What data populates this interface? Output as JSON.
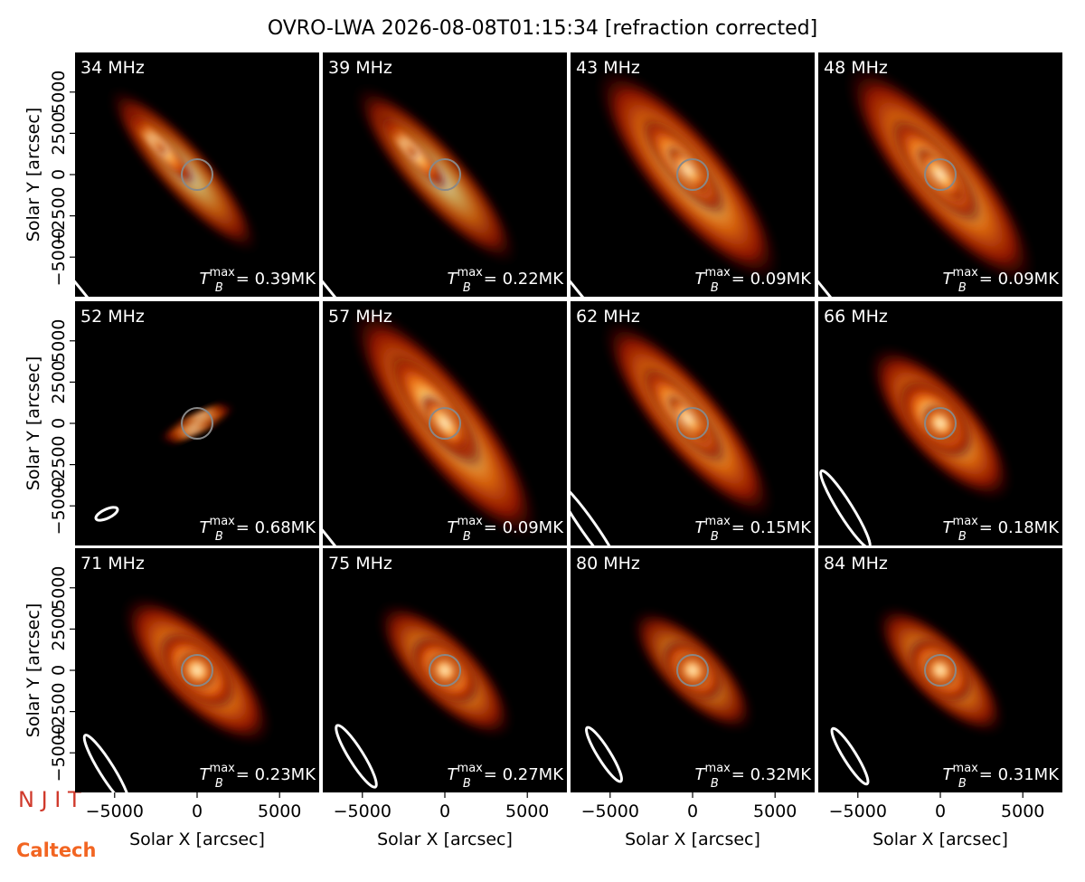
{
  "figure": {
    "title": "OVRO-LWA 2026-08-08T01:15:34 [refraction corrected]",
    "logos": [
      "N J I T",
      "Caltech"
    ],
    "tb_symbol": "T",
    "tb_sub": "B",
    "tb_sup": "max"
  },
  "chart_data": [
    {
      "type": "image",
      "title": "34 MHz",
      "annotation": "= 0.39MK",
      "xlim": [
        -7400,
        7400
      ],
      "ylim": [
        -7400,
        7400
      ],
      "ylabel": "Solar Y [arcsec]",
      "yticks": [
        {
          "value": -5000,
          "label": "−5000"
        },
        {
          "value": -2500,
          "label": "−2500"
        },
        0,
        2500,
        5000
      ]
    },
    {
      "type": "image",
      "title": "39 MHz",
      "annotation": "= 0.22MK",
      "xlim": [
        -7400,
        7400
      ],
      "ylim": [
        -7400,
        7400
      ]
    },
    {
      "type": "image",
      "title": "43 MHz",
      "annotation": "= 0.09MK",
      "xlim": [
        -7400,
        7400
      ],
      "ylim": [
        -7400,
        7400
      ]
    },
    {
      "type": "image",
      "title": "48 MHz",
      "annotation": "= 0.09MK",
      "xlim": [
        -7400,
        7400
      ],
      "ylim": [
        -7400,
        7400
      ]
    },
    {
      "type": "image",
      "title": "52 MHz",
      "annotation": "= 0.68MK",
      "xlim": [
        -7400,
        7400
      ],
      "ylim": [
        -7400,
        7400
      ],
      "ylabel": "Solar Y [arcsec]",
      "yticks": [
        {
          "value": -5000,
          "label": "−5000"
        },
        {
          "value": -2500,
          "label": "−2500"
        },
        0,
        2500,
        5000
      ]
    },
    {
      "type": "image",
      "title": "57 MHz",
      "annotation": "= 0.09MK",
      "xlim": [
        -7400,
        7400
      ],
      "ylim": [
        -7400,
        7400
      ]
    },
    {
      "type": "image",
      "title": "62 MHz",
      "annotation": "= 0.15MK",
      "xlim": [
        -7400,
        7400
      ],
      "ylim": [
        -7400,
        7400
      ]
    },
    {
      "type": "image",
      "title": "66 MHz",
      "annotation": "= 0.18MK",
      "xlim": [
        -7400,
        7400
      ],
      "ylim": [
        -7400,
        7400
      ]
    },
    {
      "type": "image",
      "title": "71 MHz",
      "annotation": "= 0.23MK",
      "xlim": [
        -7400,
        7400
      ],
      "ylim": [
        -7400,
        7400
      ],
      "ylabel": "Solar Y [arcsec]",
      "yticks": [
        {
          "value": -5000,
          "label": "−5000"
        },
        {
          "value": -2500,
          "label": "−2500"
        },
        0,
        2500,
        5000
      ],
      "xlabel": "Solar X [arcsec]",
      "xticks": [
        {
          "value": -5000,
          "label": "−5000"
        },
        0,
        5000
      ]
    },
    {
      "type": "image",
      "title": "75 MHz",
      "annotation": "= 0.27MK",
      "xlim": [
        -7400,
        7400
      ],
      "ylim": [
        -7400,
        7400
      ],
      "xlabel": "Solar X [arcsec]",
      "xticks": [
        {
          "value": -5000,
          "label": "−5000"
        },
        0,
        5000
      ]
    },
    {
      "type": "image",
      "title": "80 MHz",
      "annotation": "= 0.32MK",
      "xlim": [
        -7400,
        7400
      ],
      "ylim": [
        -7400,
        7400
      ],
      "xlabel": "Solar X [arcsec]",
      "xticks": [
        {
          "value": -5000,
          "label": "−5000"
        },
        0,
        5000
      ]
    },
    {
      "type": "image",
      "title": "84 MHz",
      "annotation": "= 0.31MK",
      "xlim": [
        -7400,
        7400
      ],
      "ylim": [
        -7400,
        7400
      ],
      "xlabel": "Solar X [arcsec]",
      "xticks": [
        {
          "value": -5000,
          "label": "−5000"
        },
        0,
        5000
      ]
    }
  ]
}
